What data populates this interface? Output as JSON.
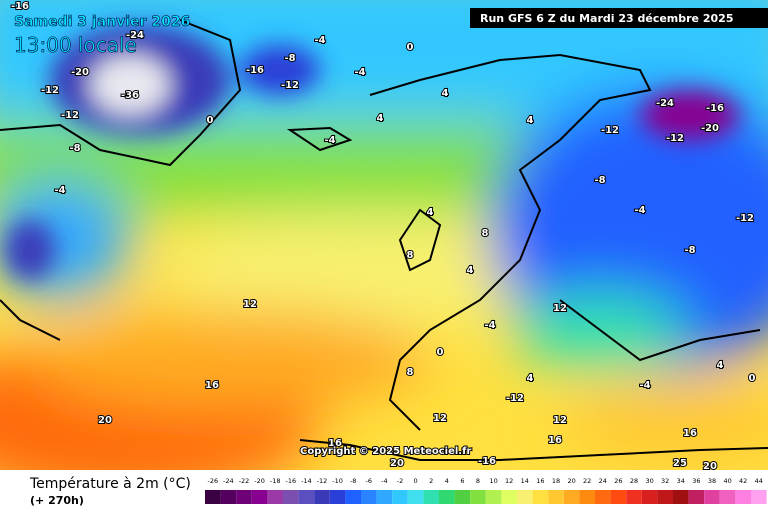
{
  "header": {
    "title": "Samedi 3 janvier 2026",
    "time": "13:00 locale",
    "run": "Run GFS 6 Z du Mardi 23 décembre 2025"
  },
  "copyright": "Copyright © 2025 Meteociel.fr",
  "footer": {
    "title": "Température à 2m (°C)",
    "lead": "(+ 270h)"
  },
  "legend": {
    "ticks": [
      -26,
      -24,
      -22,
      -20,
      -18,
      -16,
      -14,
      -12,
      -10,
      -8,
      -6,
      -4,
      -2,
      0,
      2,
      4,
      6,
      8,
      10,
      12,
      14,
      16,
      18,
      20,
      22,
      24,
      26,
      28,
      30,
      32,
      34,
      36,
      38,
      40,
      42,
      44
    ],
    "colors": [
      "#3a0042",
      "#55005e",
      "#6e0078",
      "#880090",
      "#9b3aa6",
      "#7a4fb0",
      "#5b4fc0",
      "#3a3ab8",
      "#2a3ed8",
      "#2060ff",
      "#2a84ff",
      "#30a8ff",
      "#30c8ff",
      "#40e0f0",
      "#30e0b0",
      "#30d870",
      "#50d040",
      "#80e040",
      "#b0f050",
      "#e0ff60",
      "#f8f070",
      "#ffe040",
      "#ffc830",
      "#ffaa20",
      "#ff8a10",
      "#ff6a10",
      "#ff4a10",
      "#f03020",
      "#d82020",
      "#c01818",
      "#a01010",
      "#c02060",
      "#e040a0",
      "#f060c0",
      "#ff80e0",
      "#ffa0f0"
    ]
  },
  "map": {
    "labels": [
      "-16",
      "-24",
      "-4",
      "-8",
      "-16",
      "-12",
      "-20",
      "-36",
      "-12",
      "-12",
      "-8",
      "-4",
      "0",
      "-4",
      "0",
      "-4",
      "4",
      "4",
      "4",
      "-12",
      "-24",
      "-16",
      "-20",
      "-12",
      "-8",
      "-4",
      "-12",
      "-8",
      "4",
      "8",
      "8",
      "4",
      "12",
      "-4",
      "12",
      "0",
      "8",
      "4",
      "16",
      "20",
      "-12",
      "12",
      "16",
      "12",
      "16",
      "16",
      "20",
      "-16",
      "25",
      "20",
      "-4",
      "4",
      "0"
    ]
  }
}
